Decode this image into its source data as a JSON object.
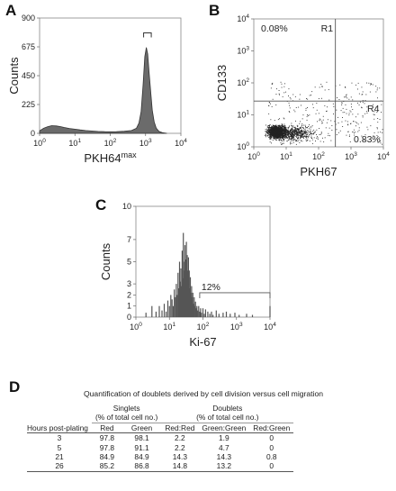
{
  "panels": {
    "a": {
      "letter": "A"
    },
    "b": {
      "letter": "B"
    },
    "c": {
      "letter": "C"
    },
    "d": {
      "letter": "D"
    }
  },
  "chart_data": [
    {
      "panel": "A",
      "type": "area",
      "xlabel": "PKH64",
      "xlabel_sup": "max",
      "ylabel": "Counts",
      "x_scale": "log",
      "xlim": [
        1,
        10000
      ],
      "ylim": [
        0,
        900
      ],
      "x_ticks": [
        {
          "base": "10",
          "exp": "0"
        },
        {
          "base": "10",
          "exp": "1"
        },
        {
          "base": "10",
          "exp": "2"
        },
        {
          "base": "10",
          "exp": "3"
        },
        {
          "base": "10",
          "exp": "4"
        }
      ],
      "y_ticks": [
        "0",
        "225",
        "450",
        "675",
        "900"
      ],
      "gate_marker": {
        "x_range": [
          880,
          1450
        ],
        "y": 700
      },
      "x": [
        1,
        1.3,
        1.7,
        2.2,
        3,
        4,
        5,
        7,
        10,
        14,
        20,
        30,
        45,
        70,
        100,
        150,
        250,
        400,
        550,
        650,
        750,
        850,
        950,
        1050,
        1150,
        1250,
        1400,
        1550,
        1750,
        2000,
        2400,
        3000,
        4000
      ],
      "y": [
        20,
        40,
        52,
        60,
        58,
        52,
        46,
        38,
        32,
        27,
        22,
        18,
        15,
        13,
        12,
        13,
        16,
        22,
        40,
        80,
        170,
        380,
        600,
        670,
        620,
        480,
        320,
        180,
        90,
        40,
        15,
        5,
        0
      ]
    },
    {
      "panel": "B",
      "type": "scatter",
      "xlabel": "PKH67",
      "ylabel": "CD133",
      "x_scale": "log",
      "y_scale": "log",
      "xlim": [
        1,
        10000
      ],
      "ylim": [
        1,
        10000
      ],
      "x_ticks": [
        {
          "base": "10",
          "exp": "0"
        },
        {
          "base": "10",
          "exp": "1"
        },
        {
          "base": "10",
          "exp": "2"
        },
        {
          "base": "10",
          "exp": "3"
        },
        {
          "base": "10",
          "exp": "4"
        }
      ],
      "y_ticks": [
        {
          "base": "10",
          "exp": "0"
        },
        {
          "base": "10",
          "exp": "1"
        },
        {
          "base": "10",
          "exp": "2"
        },
        {
          "base": "10",
          "exp": "3"
        },
        {
          "base": "10",
          "exp": "4"
        }
      ],
      "gate_x": 330,
      "gate_y": 27,
      "regions": [
        {
          "label": "R1",
          "percent": "0.08%"
        },
        {
          "label": "R4",
          "percent": "0.83%"
        }
      ],
      "cluster": {
        "center_x": 5,
        "center_y": 3,
        "approx_points": 2600
      }
    },
    {
      "panel": "C",
      "type": "bar",
      "xlabel": "Ki-67",
      "ylabel": "Counts",
      "x_scale": "log",
      "xlim": [
        1,
        10000
      ],
      "ylim": [
        0,
        10
      ],
      "x_ticks": [
        {
          "base": "10",
          "exp": "0"
        },
        {
          "base": "10",
          "exp": "1"
        },
        {
          "base": "10",
          "exp": "2"
        },
        {
          "base": "10",
          "exp": "3"
        },
        {
          "base": "10",
          "exp": "4"
        }
      ],
      "y_ticks": [
        "0",
        "1",
        "2",
        "3",
        "5",
        "7",
        "10"
      ],
      "gate": {
        "x_start": 80,
        "x_end": 10000,
        "y": 2.2,
        "label": "12%"
      },
      "x": [
        2,
        3,
        4,
        5,
        6,
        7,
        8,
        9,
        10,
        11,
        12,
        13,
        14,
        15,
        16,
        17,
        18,
        19,
        20,
        21,
        22,
        23,
        24,
        25,
        26,
        27,
        28,
        29,
        30,
        31,
        32,
        33,
        34,
        35,
        36,
        37,
        38,
        39,
        40,
        42,
        44,
        46,
        48,
        50,
        52,
        55,
        58,
        60,
        63,
        66,
        70,
        75,
        80,
        85,
        90,
        100,
        110,
        120,
        140,
        160,
        180,
        200,
        250,
        300,
        400,
        500,
        650,
        900,
        1200,
        2000,
        3000,
        10000
      ],
      "y": [
        0.4,
        1,
        0.5,
        1,
        0.6,
        1.2,
        0.5,
        1.5,
        1,
        2,
        1.6,
        1,
        2.5,
        1.8,
        3,
        2,
        4,
        2.6,
        5,
        3.2,
        4.4,
        2.8,
        6,
        3.5,
        7.6,
        4.2,
        5,
        6.5,
        5.2,
        4,
        6.8,
        4.6,
        5.6,
        4.2,
        3.8,
        5.4,
        3,
        4.2,
        2.6,
        3.6,
        2.2,
        2.8,
        1.8,
        2.2,
        1.2,
        1.8,
        1,
        1.4,
        0.8,
        1,
        0.6,
        1,
        0.5,
        0.8,
        0.4,
        0.8,
        0.3,
        0.7,
        0.5,
        0.3,
        0.5,
        0.2,
        0.6,
        0.3,
        0.4,
        0.5,
        0.3,
        0.4,
        0.2,
        0.3,
        0.2,
        1
      ]
    }
  ],
  "table": {
    "caption": "Quantification of doublets derived by cell division versus cell migration",
    "singlets_title": "Singlets",
    "singlets_sub": "(% of total cell no.)",
    "doublets_title": "Doublets",
    "doublets_sub": "(% of total cell no.)",
    "col_hours": "Hours post-plating",
    "col_red": "Red",
    "col_green": "Green",
    "col_redred": "Red:Red",
    "col_greengreen": "Green:Green",
    "col_redgreen": "Red:Green",
    "rows": [
      {
        "hours": "3",
        "red": "97.8",
        "green": "98.1",
        "rr": "2.2",
        "gg": "1.9",
        "rg": "0"
      },
      {
        "hours": "5",
        "red": "97.8",
        "green": "91.1",
        "rr": "2.2",
        "gg": "4.7",
        "rg": "0"
      },
      {
        "hours": "21",
        "red": "84.9",
        "green": "84.9",
        "rr": "14.3",
        "gg": "14.3",
        "rg": "0.8"
      },
      {
        "hours": "26",
        "red": "85.2",
        "green": "86.8",
        "rr": "14.8",
        "gg": "13.2",
        "rg": "0"
      }
    ]
  }
}
